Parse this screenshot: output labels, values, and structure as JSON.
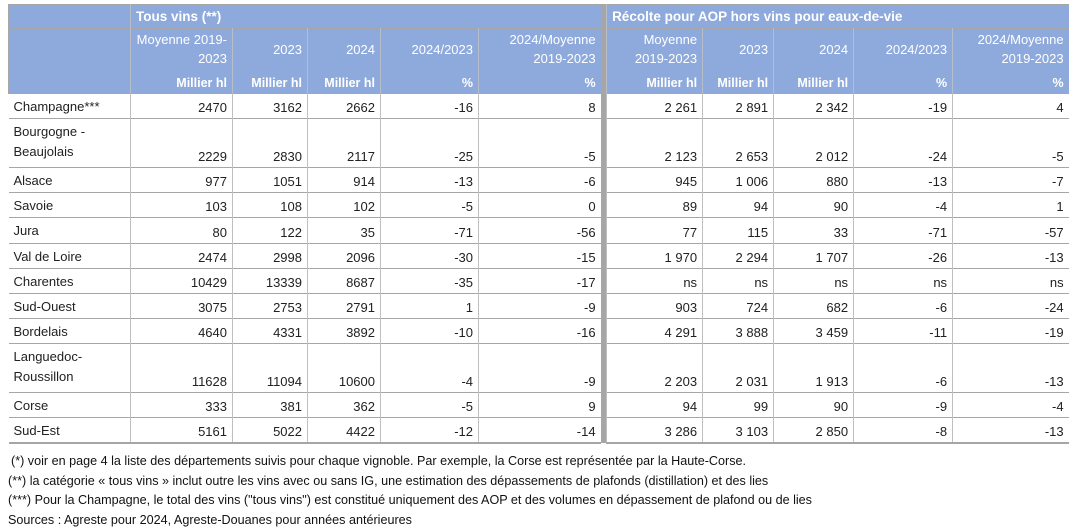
{
  "table": {
    "groups": [
      "Tous vins (**)",
      "Récolte pour AOP hors vins pour eaux-de-vie"
    ],
    "col_headers": [
      "Moyenne 2019-2023",
      "2023",
      "2024",
      "2024/2023",
      "2024/Moyenne 2019-2023"
    ],
    "unit_headers": [
      "Millier hl",
      "Millier hl",
      "Millier hl",
      "%",
      "%"
    ],
    "rows": [
      {
        "label_lines": [
          "Champagne***"
        ],
        "tous_vins": [
          "2470",
          "3162",
          "2662",
          "-16",
          "8"
        ],
        "aop": [
          "2 261",
          "2 891",
          "2 342",
          "-19",
          "4"
        ]
      },
      {
        "label_lines": [
          "Bourgogne -",
          "Beaujolais"
        ],
        "tous_vins": [
          "2229",
          "2830",
          "2117",
          "-25",
          "-5"
        ],
        "aop": [
          "2 123",
          "2 653",
          "2 012",
          "-24",
          "-5"
        ]
      },
      {
        "label_lines": [
          "Alsace"
        ],
        "tous_vins": [
          "977",
          "1051",
          "914",
          "-13",
          "-6"
        ],
        "aop": [
          "945",
          "1 006",
          "880",
          "-13",
          "-7"
        ]
      },
      {
        "label_lines": [
          "Savoie"
        ],
        "tous_vins": [
          "103",
          "108",
          "102",
          "-5",
          "0"
        ],
        "aop": [
          "89",
          "94",
          "90",
          "-4",
          "1"
        ]
      },
      {
        "label_lines": [
          "Jura"
        ],
        "tous_vins": [
          "80",
          "122",
          "35",
          "-71",
          "-56"
        ],
        "aop": [
          "77",
          "115",
          "33",
          "-71",
          "-57"
        ]
      },
      {
        "label_lines": [
          "Val de Loire"
        ],
        "tous_vins": [
          "2474",
          "2998",
          "2096",
          "-30",
          "-15"
        ],
        "aop": [
          "1 970",
          "2 294",
          "1 707",
          "-26",
          "-13"
        ]
      },
      {
        "label_lines": [
          "Charentes"
        ],
        "tous_vins": [
          "10429",
          "13339",
          "8687",
          "-35",
          "-17"
        ],
        "aop": [
          "ns",
          "ns",
          "ns",
          "ns",
          "ns"
        ]
      },
      {
        "label_lines": [
          "Sud-Ouest"
        ],
        "tous_vins": [
          "3075",
          "2753",
          "2791",
          "1",
          "-9"
        ],
        "aop": [
          "903",
          "724",
          "682",
          "-6",
          "-24"
        ]
      },
      {
        "label_lines": [
          "Bordelais"
        ],
        "tous_vins": [
          "4640",
          "4331",
          "3892",
          "-10",
          "-16"
        ],
        "aop": [
          "4 291",
          "3 888",
          "3 459",
          "-11",
          "-19"
        ]
      },
      {
        "label_lines": [
          "Languedoc-",
          "Roussillon"
        ],
        "tous_vins": [
          "11628",
          "11094",
          "10600",
          "-4",
          "-9"
        ],
        "aop": [
          "2 203",
          "2 031",
          "1 913",
          "-6",
          "-13"
        ]
      },
      {
        "label_lines": [
          "Corse"
        ],
        "tous_vins": [
          "333",
          "381",
          "362",
          "-5",
          "9"
        ],
        "aop": [
          "94",
          "99",
          "90",
          "-9",
          "-4"
        ]
      },
      {
        "label_lines": [
          "Sud-Est"
        ],
        "tous_vins": [
          "5161",
          "5022",
          "4422",
          "-12",
          "-14"
        ],
        "aop": [
          "3 286",
          "3 103",
          "2 850",
          "-8",
          "-13"
        ]
      }
    ]
  },
  "footnotes": [
    "(*) voir en page 4 la liste des départements suivis pour chaque vignoble. Par exemple, la Corse est représentée par la Haute-Corse.",
    "(**) la catégorie « tous vins » inclut outre les vins avec ou sans IG, une estimation des dépassements de plafonds (distillation) et des lies",
    "(***) Pour la Champagne, le total des vins (\"tous vins\") est constitué uniquement des AOP et des volumes en dépassement de plafond ou de lies",
    "Sources : Agreste pour 2024, Agreste-Douanes pour années antérieures"
  ],
  "colors": {
    "header_blue": "#8ea9db",
    "grid_dark": "#a6a6a6",
    "grid_light": "#bfbfbf",
    "header_text": "#ffffff",
    "body_text": "#212121"
  }
}
